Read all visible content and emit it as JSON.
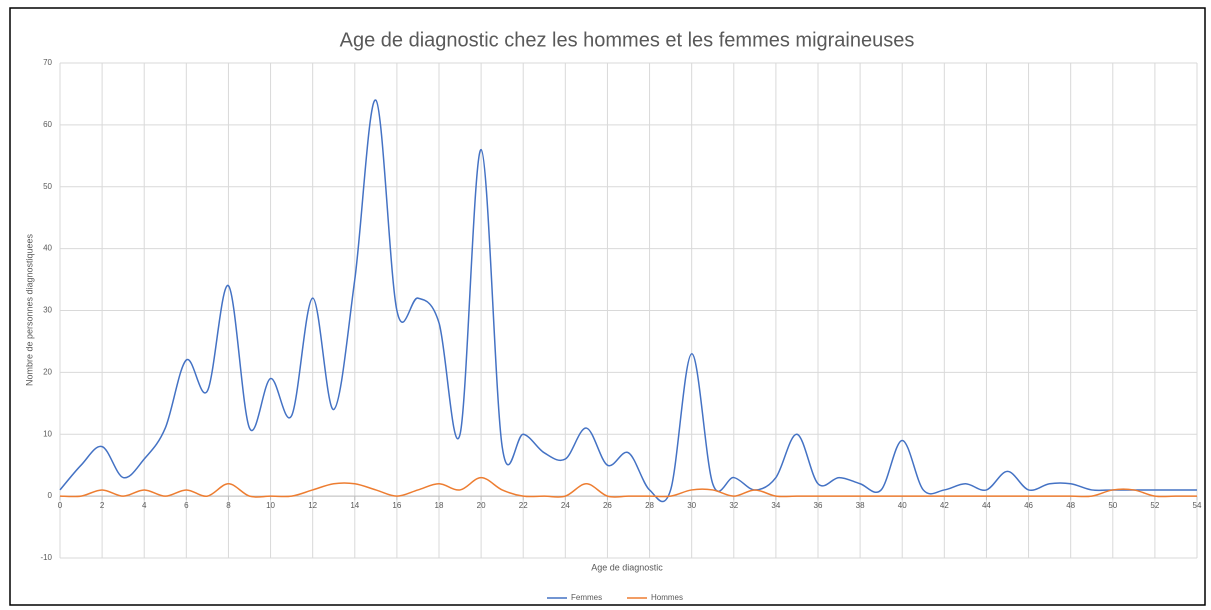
{
  "chart_data": {
    "type": "line",
    "title": "Age de diagnostic chez les hommes et les femmes migraineuses",
    "x_label": "Age de diagnostic",
    "y_label": "Nombre de personnes diagnostiquees",
    "x": [
      0,
      1,
      2,
      3,
      4,
      5,
      6,
      7,
      8,
      9,
      10,
      11,
      12,
      13,
      14,
      15,
      16,
      17,
      18,
      19,
      20,
      21,
      22,
      23,
      24,
      25,
      26,
      27,
      28,
      29,
      30,
      31,
      32,
      33,
      34,
      35,
      36,
      37,
      38,
      39,
      40,
      41,
      42,
      43,
      44,
      45,
      46,
      47,
      48,
      49,
      50,
      51,
      52,
      53,
      54
    ],
    "series": [
      {
        "name": "Femmes",
        "color": "#4472c4",
        "values": [
          1,
          5,
          8,
          3,
          6,
          11,
          22,
          17,
          34,
          11,
          19,
          13,
          32,
          14,
          35,
          64,
          30,
          32,
          28,
          10,
          56,
          8,
          10,
          7,
          6,
          11,
          5,
          7,
          1,
          1,
          23,
          2,
          3,
          1,
          3,
          10,
          2,
          3,
          2,
          1,
          9,
          1,
          1,
          2,
          1,
          4,
          1,
          2,
          2,
          1,
          1,
          1,
          1,
          1,
          1
        ]
      },
      {
        "name": "Hommes",
        "color": "#ed7d31",
        "values": [
          0,
          0,
          1,
          0,
          1,
          0,
          1,
          0,
          2,
          0,
          0,
          0,
          1,
          2,
          2,
          1,
          0,
          1,
          2,
          1,
          3,
          1,
          0,
          0,
          0,
          2,
          0,
          0,
          0,
          0,
          1,
          1,
          0,
          1,
          0,
          0,
          0,
          0,
          0,
          0,
          0,
          0,
          0,
          0,
          0,
          0,
          0,
          0,
          0,
          0,
          1,
          1,
          0,
          0,
          0
        ]
      }
    ],
    "xlim": [
      0,
      54
    ],
    "xticks": [
      0,
      2,
      4,
      6,
      8,
      10,
      12,
      14,
      16,
      18,
      20,
      22,
      24,
      26,
      28,
      30,
      32,
      34,
      36,
      38,
      40,
      42,
      44,
      46,
      48,
      50,
      52,
      54
    ],
    "ylim": [
      -10,
      70
    ],
    "yticks": [
      -10,
      0,
      10,
      20,
      30,
      40,
      50,
      60,
      70
    ],
    "grid": true,
    "legend": "bottom"
  }
}
